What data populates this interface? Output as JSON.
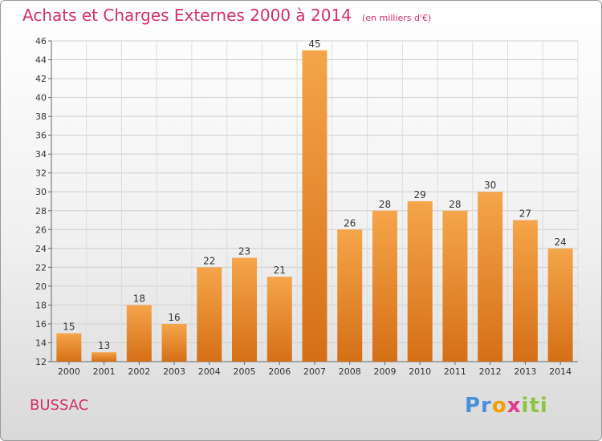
{
  "header": {
    "title": "Achats et Charges Externes 2000 à 2014",
    "unit_note": "(en milliers d'€)"
  },
  "footer": {
    "commune": "BUSSAC",
    "logo_text": "Proxiti"
  },
  "colors": {
    "title": "#d2306a",
    "bar_light": "#f5a54a",
    "bar_dark": "#d56f16"
  },
  "chart_data": {
    "type": "bar",
    "title": "Achats et Charges Externes 2000 à 2014",
    "subtitle": "(en milliers d'€)",
    "categories": [
      "2000",
      "2001",
      "2002",
      "2003",
      "2004",
      "2005",
      "2006",
      "2007",
      "2008",
      "2009",
      "2010",
      "2011",
      "2012",
      "2013",
      "2014"
    ],
    "values": [
      15,
      13,
      18,
      16,
      22,
      23,
      21,
      45,
      26,
      28,
      29,
      28,
      30,
      27,
      24
    ],
    "ylim": [
      12,
      46
    ],
    "yticks": [
      12,
      14,
      16,
      18,
      20,
      22,
      24,
      26,
      28,
      30,
      32,
      34,
      36,
      38,
      40,
      42,
      44,
      46
    ],
    "grid": true,
    "legend": "none"
  }
}
